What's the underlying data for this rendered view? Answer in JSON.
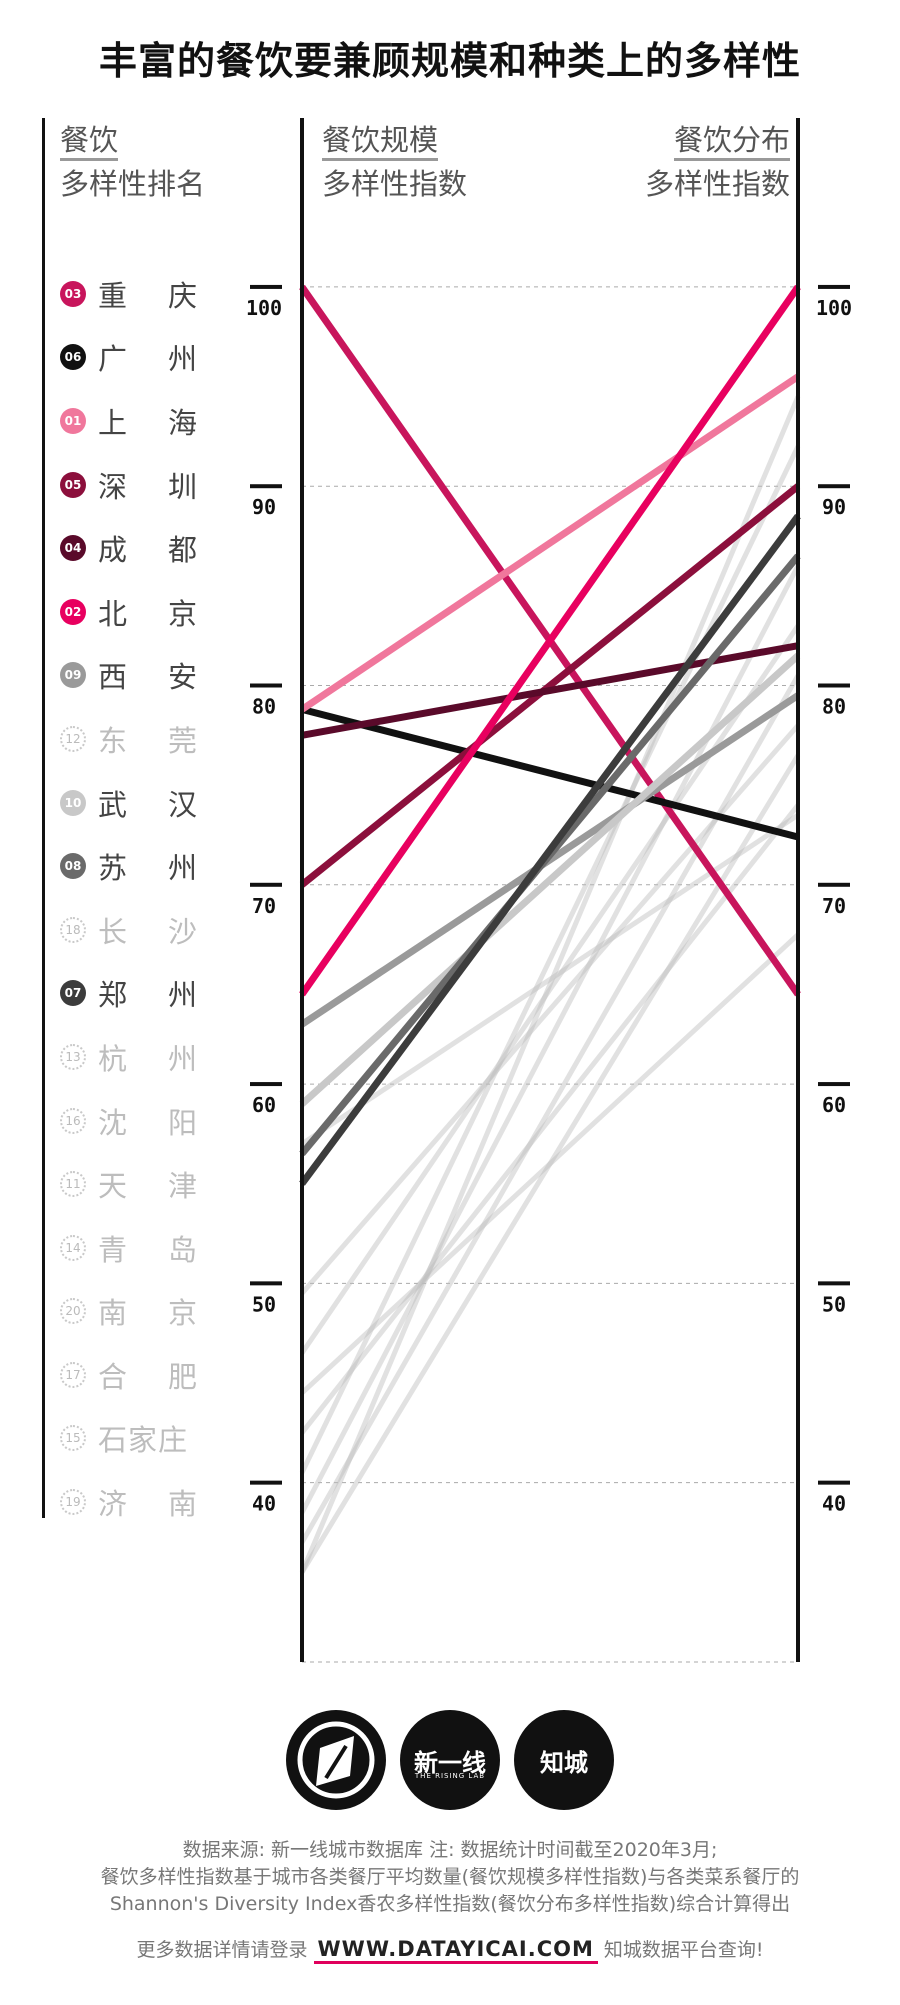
{
  "title": "丰富的餐饮要兼顾规模和种类上的多样性",
  "rank_header": {
    "line1": "餐饮",
    "line2": "多样性排名"
  },
  "left_axis_header": {
    "line1": "餐饮规模",
    "line2": "多样性指数"
  },
  "right_axis_header": {
    "line1": "餐饮分布",
    "line2": "多样性指数"
  },
  "ranking": [
    {
      "rank": "03",
      "city": [
        "重",
        "庆"
      ],
      "color": "#c8155c",
      "faded": false
    },
    {
      "rank": "06",
      "city": [
        "广",
        "州"
      ],
      "color": "#111111",
      "faded": false
    },
    {
      "rank": "01",
      "city": [
        "上",
        "海"
      ],
      "color": "#f0779c",
      "faded": false
    },
    {
      "rank": "05",
      "city": [
        "深",
        "圳"
      ],
      "color": "#8c0f3c",
      "faded": false
    },
    {
      "rank": "04",
      "city": [
        "成",
        "都"
      ],
      "color": "#5a0a2a",
      "faded": false
    },
    {
      "rank": "02",
      "city": [
        "北",
        "京"
      ],
      "color": "#e8005f",
      "faded": false
    },
    {
      "rank": "09",
      "city": [
        "西",
        "安"
      ],
      "color": "#9a9a9a",
      "faded": false
    },
    {
      "rank": "12",
      "city": [
        "东",
        "莞"
      ],
      "color": "#dddddd",
      "faded": true
    },
    {
      "rank": "10",
      "city": [
        "武",
        "汉"
      ],
      "color": "#c8c8c8",
      "faded": false
    },
    {
      "rank": "08",
      "city": [
        "苏",
        "州"
      ],
      "color": "#6a6a6a",
      "faded": false
    },
    {
      "rank": "18",
      "city": [
        "长",
        "沙"
      ],
      "color": "#dddddd",
      "faded": true
    },
    {
      "rank": "07",
      "city": [
        "郑",
        "州"
      ],
      "color": "#3c3c3c",
      "faded": false
    },
    {
      "rank": "13",
      "city": [
        "杭",
        "州"
      ],
      "color": "#dddddd",
      "faded": true
    },
    {
      "rank": "16",
      "city": [
        "沈",
        "阳"
      ],
      "color": "#dddddd",
      "faded": true
    },
    {
      "rank": "11",
      "city": [
        "天",
        "津"
      ],
      "color": "#dddddd",
      "faded": true
    },
    {
      "rank": "14",
      "city": [
        "青",
        "岛"
      ],
      "color": "#dddddd",
      "faded": true
    },
    {
      "rank": "20",
      "city": [
        "南",
        "京"
      ],
      "color": "#dddddd",
      "faded": true
    },
    {
      "rank": "17",
      "city": [
        "合",
        "肥"
      ],
      "color": "#dddddd",
      "faded": true
    },
    {
      "rank": "15",
      "city": [
        "石家庄"
      ],
      "color": "#dddddd",
      "faded": true
    },
    {
      "rank": "19",
      "city": [
        "济",
        "南"
      ],
      "color": "#dddddd",
      "faded": true
    }
  ],
  "chart_data": {
    "type": "line",
    "subtype": "slope",
    "axes": [
      "餐饮规模多样性指数",
      "餐饮分布多样性指数"
    ],
    "ylim": [
      31,
      101
    ],
    "yticks": [
      "100",
      "90",
      "80",
      "70",
      "60",
      "50",
      "40"
    ],
    "grid": true,
    "series": [
      {
        "name": "重庆",
        "values": [
          100.0,
          64.5
        ],
        "color": "#c8155c",
        "width": 7,
        "opacity": 1
      },
      {
        "name": "广州",
        "values": [
          78.8,
          72.4
        ],
        "color": "#111111",
        "width": 7,
        "opacity": 1
      },
      {
        "name": "上海",
        "values": [
          78.8,
          95.5
        ],
        "color": "#f0779c",
        "width": 7,
        "opacity": 1
      },
      {
        "name": "深圳",
        "values": [
          70.0,
          90.0
        ],
        "color": "#8c0f3c",
        "width": 7,
        "opacity": 1
      },
      {
        "name": "成都",
        "values": [
          77.5,
          82.0
        ],
        "color": "#5a0a2a",
        "width": 7,
        "opacity": 1
      },
      {
        "name": "北京",
        "values": [
          64.5,
          100.0
        ],
        "color": "#e8005f",
        "width": 7,
        "opacity": 1
      },
      {
        "name": "西安",
        "values": [
          63.0,
          79.5
        ],
        "color": "#9a9a9a",
        "width": 7,
        "opacity": 1
      },
      {
        "name": "武汉",
        "values": [
          59.0,
          81.5
        ],
        "color": "#c8c8c8",
        "width": 7,
        "opacity": 1
      },
      {
        "name": "苏州",
        "values": [
          56.5,
          86.5
        ],
        "color": "#6a6a6a",
        "width": 7,
        "opacity": 1
      },
      {
        "name": "郑州",
        "values": [
          55.0,
          88.5
        ],
        "color": "#3c3c3c",
        "width": 7,
        "opacity": 1
      },
      {
        "name": "东莞",
        "values": [
          57.0,
          73.5
        ],
        "color": "#bdbdbd",
        "width": 5,
        "opacity": 0.45
      },
      {
        "name": "长沙",
        "values": [
          49.5,
          78.0
        ],
        "color": "#bdbdbd",
        "width": 5,
        "opacity": 0.45
      },
      {
        "name": "杭州",
        "values": [
          46.5,
          83.0
        ],
        "color": "#bdbdbd",
        "width": 5,
        "opacity": 0.45
      },
      {
        "name": "沈阳",
        "values": [
          44.5,
          67.5
        ],
        "color": "#bdbdbd",
        "width": 5,
        "opacity": 0.45
      },
      {
        "name": "天津",
        "values": [
          42.5,
          74.0
        ],
        "color": "#bdbdbd",
        "width": 5,
        "opacity": 0.45
      },
      {
        "name": "青岛",
        "values": [
          40.5,
          92.0
        ],
        "color": "#bdbdbd",
        "width": 5,
        "opacity": 0.45
      },
      {
        "name": "南京",
        "values": [
          38.5,
          86.0
        ],
        "color": "#bdbdbd",
        "width": 5,
        "opacity": 0.45
      },
      {
        "name": "合肥",
        "values": [
          37.0,
          80.5
        ],
        "color": "#bdbdbd",
        "width": 5,
        "opacity": 0.45
      },
      {
        "name": "石家庄",
        "values": [
          35.5,
          76.5
        ],
        "color": "#bdbdbd",
        "width": 5,
        "opacity": 0.45
      },
      {
        "name": "济南",
        "values": [
          35.5,
          94.5
        ],
        "color": "#bdbdbd",
        "width": 5,
        "opacity": 0.45
      }
    ]
  },
  "logos": [
    "",
    "新一线",
    "知城"
  ],
  "logo_sub": "THE RISING LAB",
  "footer": {
    "line1": "数据来源: 新一线城市数据库  注: 数据统计时间截至2020年3月;",
    "line2": "餐饮多样性指数基于城市各类餐厅平均数量(餐饮规模多样性指数)与各类菜系餐厅的",
    "line3": "Shannon's Diversity Index香农多样性指数(餐饮分布多样性指数)综合计算得出",
    "line4_pre": "更多数据详情请登录",
    "url": "WWW.DATAYICAI.COM",
    "line4_post": "知城数据平台查询!"
  }
}
